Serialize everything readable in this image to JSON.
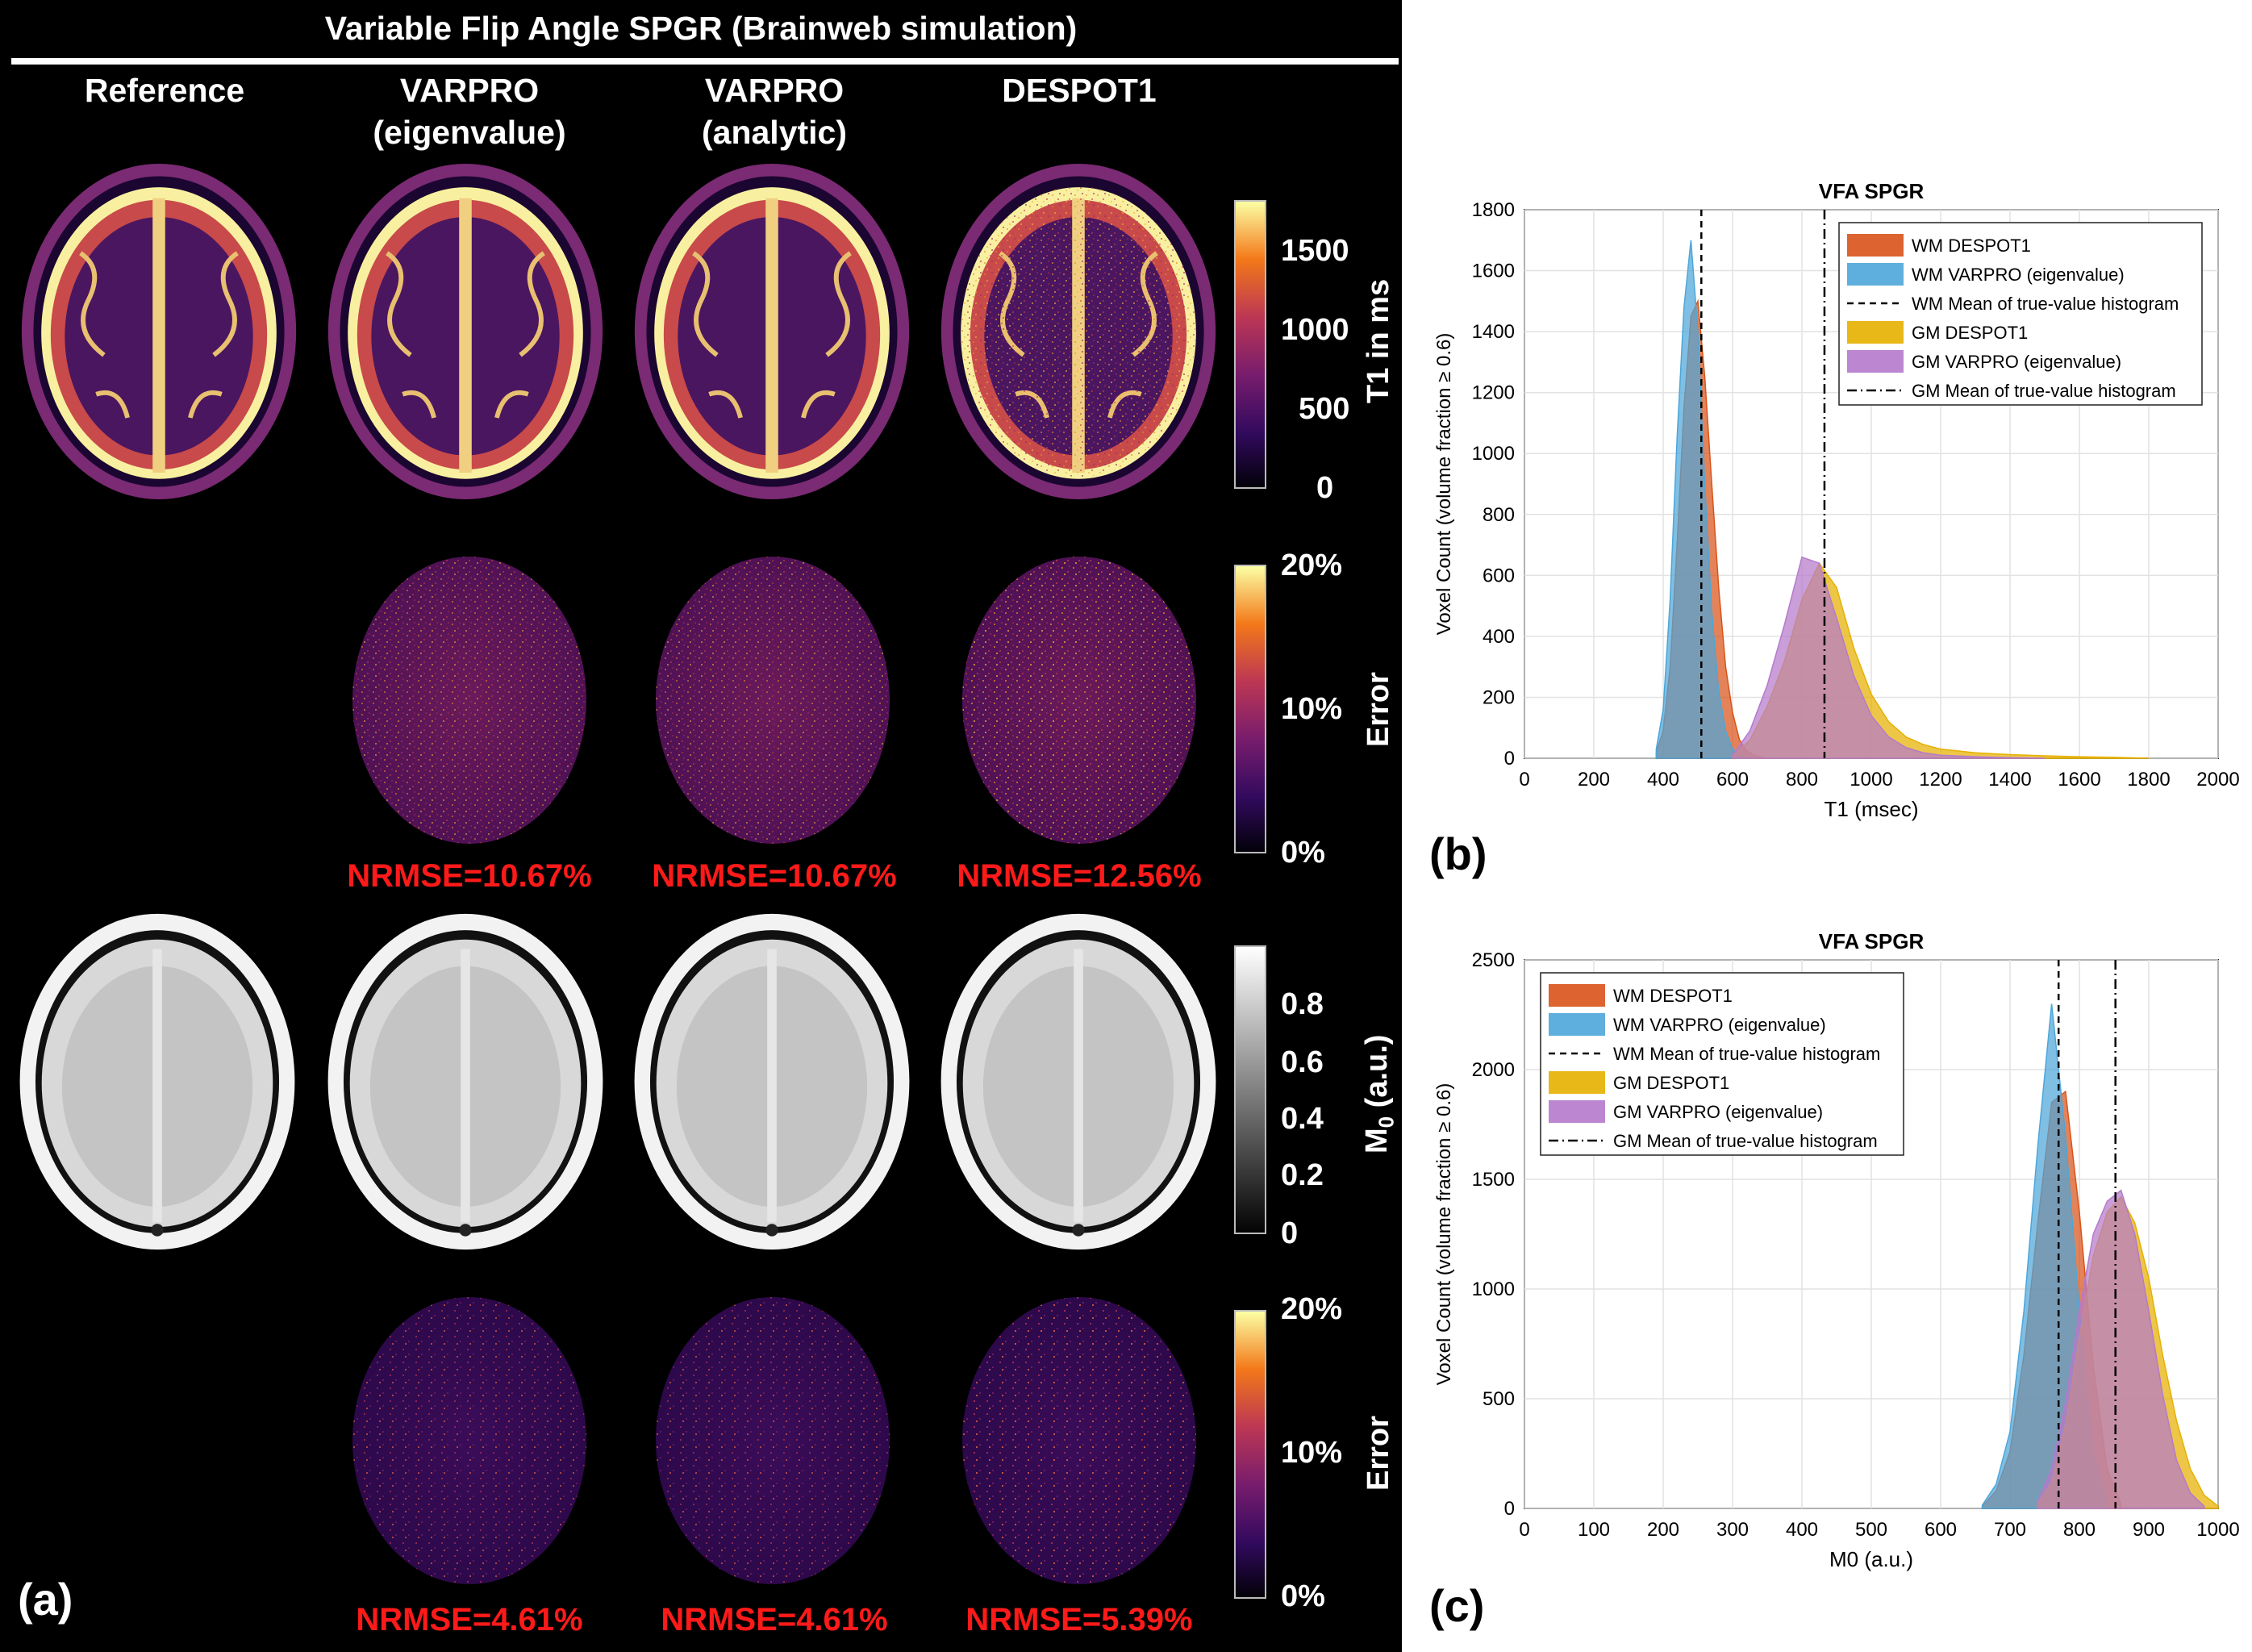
{
  "panel_a": {
    "title": "Variable Flip Angle SPGR (Brainweb simulation)",
    "columns": [
      {
        "line1": "Reference",
        "line2": ""
      },
      {
        "line1": "VARPRO",
        "line2": "(eigenvalue)"
      },
      {
        "line1": "VARPRO",
        "line2": "(analytic)"
      },
      {
        "line1": "DESPOT1",
        "line2": ""
      }
    ],
    "colorbars": {
      "t1": {
        "label": "T1 in ms",
        "ticks": [
          "1500",
          "1000",
          "500",
          "0"
        ]
      },
      "t1_error": {
        "label": "Error",
        "ticks": [
          "20%",
          "10%",
          "0%"
        ]
      },
      "m0": {
        "label": "M",
        "label_sub": "0",
        "label_suffix": " (a.u.)",
        "ticks": [
          "0.8",
          "0.6",
          "0.4",
          "0.2",
          "0"
        ]
      },
      "m0_error": {
        "label": "Error",
        "ticks": [
          "20%",
          "10%",
          "0%"
        ]
      }
    },
    "t1_nrmse": [
      "NRMSE=10.67%",
      "NRMSE=10.67%",
      "NRMSE=12.56%"
    ],
    "m0_nrmse": [
      "NRMSE=4.61%",
      "NRMSE=4.61%",
      "NRMSE=5.39%"
    ],
    "letter": "(a)"
  },
  "panel_b": {
    "letter": "(b)",
    "chart_data": {
      "type": "histogram",
      "title": "VFA SPGR",
      "xlabel": "T1 (msec)",
      "ylabel": "Voxel Count (volume fraction ≥ 0.6)",
      "xlim": [
        0,
        2000
      ],
      "ylim": [
        0,
        1800
      ],
      "xticks": [
        "0",
        "200",
        "400",
        "600",
        "800",
        "1000",
        "1200",
        "1400",
        "1600",
        "1800",
        "2000"
      ],
      "yticks": [
        "0",
        "200",
        "400",
        "600",
        "800",
        "1000",
        "1200",
        "1400",
        "1600",
        "1800"
      ],
      "grid": true,
      "legend_position": "top-right",
      "series": [
        {
          "name": "WM DESPOT1",
          "color": "#d95319",
          "x": [
            380,
            400,
            420,
            440,
            460,
            480,
            500,
            520,
            540,
            560,
            580,
            600,
            620,
            640,
            660,
            680,
            700
          ],
          "values": [
            20,
            90,
            300,
            700,
            1150,
            1450,
            1500,
            1250,
            900,
            560,
            300,
            150,
            60,
            25,
            10,
            4,
            0
          ]
        },
        {
          "name": "WM VARPRO (eigenvalue)",
          "color": "#4da6d9",
          "x": [
            380,
            400,
            420,
            440,
            460,
            480,
            500,
            520,
            540,
            560,
            580,
            600,
            620,
            640,
            660
          ],
          "values": [
            30,
            160,
            520,
            1050,
            1480,
            1700,
            1400,
            900,
            480,
            220,
            90,
            30,
            10,
            3,
            0
          ]
        },
        {
          "name": "GM DESPOT1",
          "color": "#e6b000",
          "x": [
            600,
            650,
            700,
            750,
            800,
            850,
            900,
            950,
            1000,
            1050,
            1100,
            1150,
            1200,
            1300,
            1400,
            1500,
            1600,
            1700,
            1800
          ],
          "values": [
            5,
            60,
            170,
            320,
            520,
            640,
            560,
            360,
            210,
            120,
            70,
            45,
            30,
            18,
            12,
            8,
            5,
            3,
            0
          ]
        },
        {
          "name": "GM VARPRO (eigenvalue)",
          "color": "#b57acb",
          "x": [
            600,
            650,
            700,
            750,
            800,
            850,
            900,
            950,
            1000,
            1050,
            1100,
            1150,
            1200,
            1300,
            1400,
            1500
          ],
          "values": [
            10,
            90,
            240,
            440,
            660,
            640,
            460,
            270,
            140,
            70,
            35,
            18,
            10,
            5,
            2,
            0
          ]
        }
      ],
      "reference_lines": [
        {
          "name": "WM Mean of true-value histogram",
          "x": 510,
          "style": "dashed"
        },
        {
          "name": "GM Mean of true-value histogram",
          "x": 865,
          "style": "dashdot"
        }
      ]
    }
  },
  "panel_c": {
    "letter": "(c)",
    "chart_data": {
      "type": "histogram",
      "title": "VFA SPGR",
      "xlabel": "M0 (a.u.)",
      "ylabel": "Voxel Count (volume fraction ≥ 0.6)",
      "xlim": [
        0,
        1000
      ],
      "ylim": [
        0,
        2500
      ],
      "xticks": [
        "0",
        "100",
        "200",
        "300",
        "400",
        "500",
        "600",
        "700",
        "800",
        "900",
        "1000"
      ],
      "yticks": [
        "0",
        "500",
        "1000",
        "1500",
        "2000",
        "2500"
      ],
      "grid": true,
      "legend_position": "top-left",
      "series": [
        {
          "name": "WM DESPOT1",
          "color": "#d95319",
          "x": [
            660,
            680,
            700,
            720,
            740,
            760,
            780,
            800,
            820,
            840,
            860
          ],
          "values": [
            10,
            80,
            260,
            700,
            1300,
            1850,
            1900,
            1350,
            650,
            180,
            20
          ]
        },
        {
          "name": "WM VARPRO (eigenvalue)",
          "color": "#4da6d9",
          "x": [
            660,
            680,
            700,
            720,
            740,
            760,
            780,
            800,
            820,
            840
          ],
          "values": [
            15,
            110,
            350,
            900,
            1650,
            2300,
            1700,
            900,
            250,
            30
          ]
        },
        {
          "name": "GM DESPOT1",
          "color": "#e6b000",
          "x": [
            740,
            760,
            780,
            800,
            820,
            840,
            860,
            880,
            900,
            920,
            940,
            960,
            980,
            1000
          ],
          "values": [
            20,
            120,
            380,
            780,
            1150,
            1350,
            1420,
            1300,
            1050,
            700,
            400,
            180,
            60,
            10
          ]
        },
        {
          "name": "GM VARPRO (eigenvalue)",
          "color": "#b57acb",
          "x": [
            740,
            760,
            780,
            800,
            820,
            840,
            860,
            880,
            900,
            920,
            940,
            960,
            980
          ],
          "values": [
            30,
            180,
            480,
            900,
            1250,
            1400,
            1450,
            1250,
            900,
            520,
            220,
            70,
            10
          ]
        }
      ],
      "reference_lines": [
        {
          "name": "WM Mean of true-value histogram",
          "x": 770,
          "style": "dashed"
        },
        {
          "name": "GM Mean of true-value histogram",
          "x": 852,
          "style": "dashdot"
        }
      ]
    }
  }
}
